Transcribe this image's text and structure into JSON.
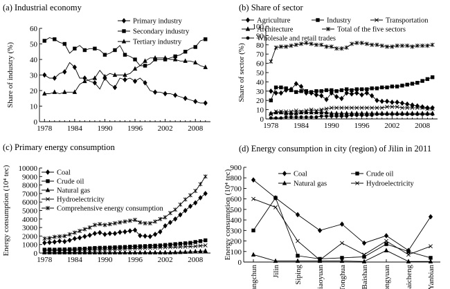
{
  "chart_data": [
    {
      "type": "line",
      "title": "(a) Industrial economy",
      "xlabel": "",
      "ylabel": "Share of industry (%)",
      "xlim": [
        1977,
        2011
      ],
      "ylim": [
        0,
        60
      ],
      "xticks": [
        1978,
        1984,
        1990,
        1996,
        2002,
        2008
      ],
      "yticks": [
        0,
        10,
        20,
        30,
        40,
        50,
        60
      ],
      "legend_placement": "top-center",
      "x": [
        1978,
        1979,
        1980,
        1981,
        1982,
        1983,
        1984,
        1985,
        1986,
        1987,
        1988,
        1989,
        1990,
        1991,
        1992,
        1993,
        1994,
        1995,
        1996,
        1997,
        1998,
        1999,
        2000,
        2001,
        2002,
        2003,
        2004,
        2005,
        2006,
        2007,
        2008,
        2009,
        2010
      ],
      "series": [
        {
          "name": "Primary industry",
          "marker": "diamond",
          "values": [
            30,
            28,
            28,
            31,
            32,
            38,
            35,
            28,
            28,
            26,
            25,
            21,
            28,
            24,
            22,
            28,
            27,
            28,
            26,
            28,
            25,
            20,
            19,
            19,
            18,
            18,
            17,
            16,
            15,
            14,
            13,
            12,
            12
          ]
        },
        {
          "name": "Secondary industry",
          "marker": "square",
          "values": [
            52,
            54,
            53,
            51,
            50,
            44,
            47,
            49,
            46,
            47,
            47,
            46,
            43,
            44,
            46,
            49,
            43,
            42,
            40,
            36,
            36,
            37,
            40,
            40,
            40,
            41,
            42,
            43,
            45,
            47,
            48,
            52,
            53
          ]
        },
        {
          "name": "Tertiary industry",
          "marker": "triangle",
          "values": [
            18,
            18,
            19,
            18,
            19,
            19,
            19,
            24,
            26,
            27,
            28,
            33,
            29,
            31,
            30,
            30,
            30,
            31,
            34,
            36,
            39,
            41,
            41,
            41,
            41,
            40,
            40,
            39,
            39,
            39,
            38,
            36,
            35
          ]
        }
      ]
    },
    {
      "type": "line",
      "title": "(b) Share of sector",
      "xlabel": "",
      "ylabel": "Share of sector (%)",
      "xlim": [
        1977,
        2011
      ],
      "ylim": [
        0,
        100
      ],
      "xticks": [
        1978,
        1984,
        1990,
        1996,
        2002,
        2008
      ],
      "yticks": [
        0,
        10,
        20,
        30,
        40,
        50,
        60,
        70,
        80,
        90,
        100
      ],
      "legend_placement": "top",
      "x": [
        1978,
        1979,
        1980,
        1981,
        1982,
        1983,
        1984,
        1985,
        1986,
        1987,
        1988,
        1989,
        1990,
        1991,
        1992,
        1993,
        1994,
        1995,
        1996,
        1997,
        1998,
        1999,
        2000,
        2001,
        2002,
        2003,
        2004,
        2005,
        2006,
        2007,
        2008,
        2009,
        2010
      ],
      "series": [
        {
          "name": "Agriculture",
          "marker": "diamond",
          "values": [
            30,
            28,
            28,
            31,
            32,
            38,
            35,
            28,
            28,
            26,
            25,
            21,
            28,
            24,
            22,
            28,
            27,
            28,
            26,
            28,
            25,
            20,
            19,
            19,
            18,
            18,
            17,
            16,
            15,
            14,
            13,
            12,
            12
          ]
        },
        {
          "name": "Industry",
          "marker": "square",
          "values": [
            20,
            34,
            34,
            33,
            31,
            29,
            30,
            30,
            29,
            30,
            30,
            31,
            31,
            30,
            31,
            32,
            31,
            32,
            32,
            32,
            33,
            33,
            34,
            34,
            35,
            35,
            36,
            37,
            38,
            39,
            41,
            43,
            45
          ]
        },
        {
          "name": "Transportation",
          "marker": "x",
          "values": [
            5,
            8,
            8,
            8,
            8,
            9,
            8,
            9,
            10,
            9,
            10,
            11,
            12,
            12,
            12,
            12,
            12,
            12,
            12,
            12,
            12,
            12,
            12,
            13,
            13,
            13,
            12,
            12,
            12,
            12,
            12,
            11,
            11
          ]
        },
        {
          "name": "Architecture",
          "marker": "triangle",
          "values": [
            6,
            7,
            7,
            6,
            6,
            6,
            7,
            7,
            7,
            7,
            7,
            7,
            6,
            6,
            6,
            6,
            6,
            6,
            6,
            6,
            6,
            6,
            6,
            6,
            6,
            6,
            6,
            6,
            6,
            6,
            6,
            6,
            6
          ]
        },
        {
          "name": "Total of the five sectors",
          "marker": "asterisk",
          "values": [
            62,
            77,
            78,
            78,
            79,
            80,
            81,
            82,
            81,
            80,
            80,
            78,
            78,
            76,
            76,
            77,
            81,
            82,
            82,
            81,
            80,
            80,
            79,
            78,
            78,
            79,
            79,
            79,
            78,
            79,
            79,
            79,
            80
          ]
        },
        {
          "name": "Wholesale and retail trades",
          "marker": "circle",
          "values": [
            1,
            1,
            1,
            2,
            2,
            2,
            2,
            2,
            2,
            2,
            3,
            3,
            3,
            3,
            3,
            3,
            4,
            4,
            4,
            4,
            4,
            5,
            5,
            5,
            5,
            5,
            5,
            5,
            5,
            5,
            5,
            5,
            5
          ]
        }
      ]
    },
    {
      "type": "line",
      "title": "(c) Primary energy consumption",
      "xlabel": "",
      "ylabel": "Energy consumption (10⁴ tec)",
      "xlim": [
        1977,
        2011
      ],
      "ylim": [
        0,
        10000
      ],
      "xticks": [
        1978,
        1984,
        1990,
        1996,
        2002,
        2008
      ],
      "yticks": [
        0,
        1000,
        2000,
        3000,
        4000,
        5000,
        6000,
        7000,
        8000,
        9000,
        10000
      ],
      "legend_placement": "top-left",
      "x": [
        1978,
        1979,
        1980,
        1981,
        1982,
        1983,
        1984,
        1985,
        1986,
        1987,
        1988,
        1989,
        1990,
        1991,
        1992,
        1993,
        1994,
        1995,
        1996,
        1997,
        1998,
        1999,
        2000,
        2001,
        2002,
        2003,
        2004,
        2005,
        2006,
        2007,
        2008,
        2009,
        2010
      ],
      "series": [
        {
          "name": "Coal",
          "marker": "diamond",
          "values": [
            1200,
            1250,
            1300,
            1400,
            1350,
            1500,
            1700,
            1800,
            1950,
            2100,
            2300,
            2400,
            2200,
            2300,
            2300,
            2450,
            2500,
            2600,
            2700,
            2050,
            2000,
            1950,
            2200,
            2500,
            3200,
            3600,
            4000,
            4500,
            5000,
            5500,
            5900,
            6500,
            7000
          ]
        },
        {
          "name": "Crude oil",
          "marker": "square",
          "values": [
            400,
            420,
            400,
            420,
            430,
            450,
            470,
            500,
            520,
            560,
            600,
            620,
            630,
            650,
            680,
            700,
            720,
            750,
            780,
            800,
            820,
            850,
            870,
            900,
            950,
            1000,
            1050,
            1100,
            1150,
            1200,
            1300,
            1400,
            1500
          ]
        },
        {
          "name": "Natural gas",
          "marker": "triangle",
          "values": [
            60,
            60,
            60,
            60,
            60,
            60,
            60,
            60,
            60,
            60,
            60,
            60,
            60,
            60,
            60,
            60,
            60,
            60,
            60,
            60,
            60,
            60,
            60,
            60,
            60,
            60,
            80,
            100,
            120,
            150,
            180,
            200,
            250
          ]
        },
        {
          "name": "Hydroelectricity",
          "marker": "x",
          "values": [
            250,
            270,
            260,
            280,
            290,
            300,
            320,
            330,
            340,
            350,
            380,
            400,
            420,
            430,
            450,
            470,
            500,
            520,
            540,
            560,
            580,
            600,
            620,
            640,
            660,
            680,
            700,
            720,
            750,
            780,
            800,
            850,
            900
          ]
        },
        {
          "name": "Comprehensive energy consumption",
          "marker": "asterisk",
          "values": [
            1700,
            1750,
            1900,
            1950,
            2000,
            2200,
            2400,
            2600,
            2800,
            3000,
            3300,
            3400,
            3300,
            3400,
            3500,
            3600,
            3700,
            3800,
            3900,
            3600,
            3500,
            3500,
            3700,
            4000,
            4200,
            4700,
            5100,
            5700,
            6300,
            6800,
            7300,
            8100,
            9000
          ]
        }
      ]
    },
    {
      "type": "line",
      "title": "(d) Energy consumption in city (region) of Jilin in 2011",
      "xlabel": "",
      "ylabel": "Energy consumption (10⁴ tec)",
      "ylim": [
        0,
        900
      ],
      "yticks": [
        0,
        100,
        200,
        300,
        400,
        500,
        600,
        700,
        800,
        900
      ],
      "legend_placement": "top",
      "categories": [
        "Changchun",
        "Jilin",
        "Siping",
        "Liaoyuan",
        "Tonghua",
        "Baishan",
        "Songyuan",
        "Baicheng",
        "Yanbian"
      ],
      "series": [
        {
          "name": "Coal",
          "marker": "diamond",
          "values": [
            780,
            610,
            450,
            300,
            360,
            180,
            250,
            110,
            430
          ]
        },
        {
          "name": "Crude oil",
          "marker": "square",
          "values": [
            300,
            610,
            60,
            30,
            40,
            50,
            170,
            100,
            40
          ]
        },
        {
          "name": "Natural gas",
          "marker": "triangle",
          "values": [
            70,
            10,
            10,
            10,
            10,
            5,
            110,
            5,
            5
          ]
        },
        {
          "name": "Hydroelectricity",
          "marker": "x",
          "values": [
            600,
            520,
            200,
            20,
            180,
            70,
            200,
            70,
            150
          ]
        }
      ]
    }
  ]
}
